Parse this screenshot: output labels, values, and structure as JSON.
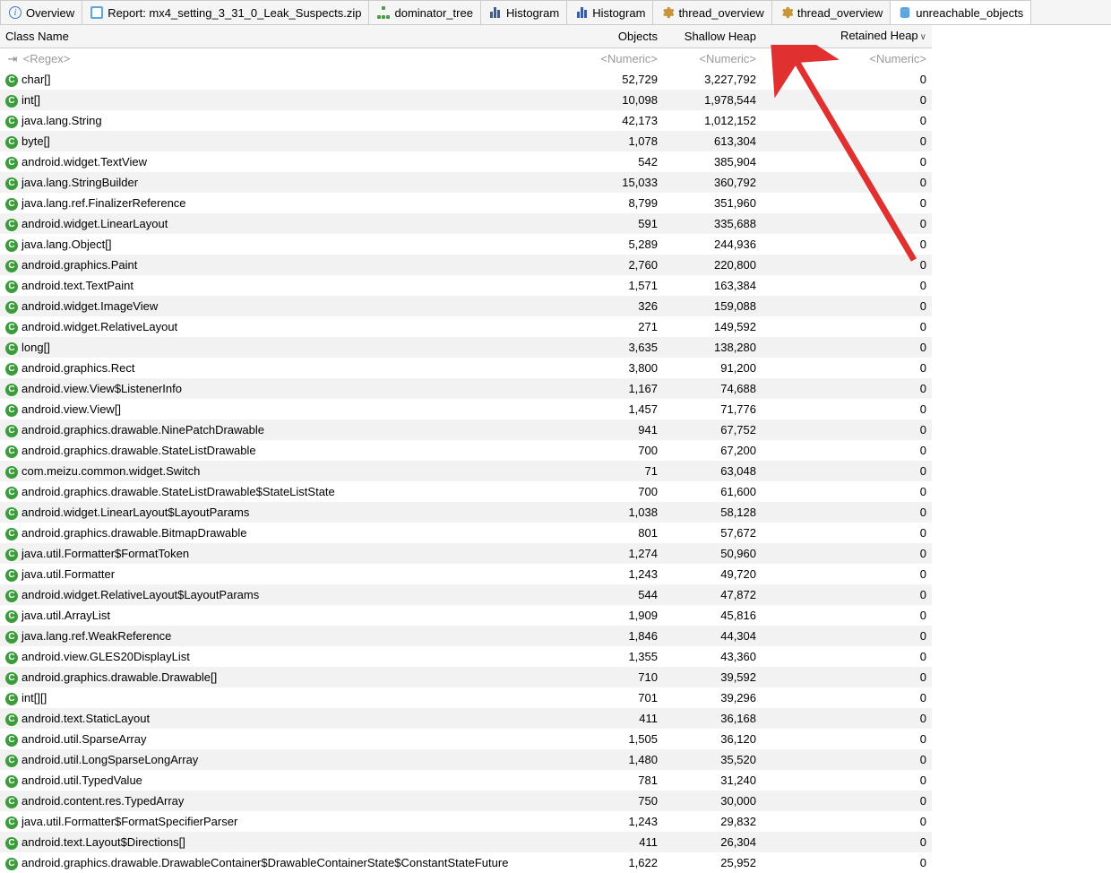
{
  "tabs": [
    {
      "label": "Overview",
      "icon": "info"
    },
    {
      "label": "Report: mx4_setting_3_31_0_Leak_Suspects.zip",
      "icon": "report"
    },
    {
      "label": "dominator_tree",
      "icon": "tree"
    },
    {
      "label": "Histogram",
      "icon": "hist"
    },
    {
      "label": "Histogram",
      "icon": "hist"
    },
    {
      "label": "thread_overview",
      "icon": "gear"
    },
    {
      "label": "thread_overview",
      "icon": "gear"
    },
    {
      "label": "unreachable_objects",
      "icon": "db",
      "active": true
    }
  ],
  "columns": {
    "name": "Class Name",
    "objects": "Objects",
    "shallow": "Shallow Heap",
    "retained": "Retained Heap"
  },
  "sort_indicator": "∨",
  "filter": {
    "regex": "<Regex>",
    "numeric": "<Numeric>"
  },
  "icon_letter": "C",
  "rows": [
    {
      "name": "char[]",
      "objects": "52,729",
      "shallow": "3,227,792",
      "retained": "0"
    },
    {
      "name": "int[]",
      "objects": "10,098",
      "shallow": "1,978,544",
      "retained": "0"
    },
    {
      "name": "java.lang.String",
      "objects": "42,173",
      "shallow": "1,012,152",
      "retained": "0"
    },
    {
      "name": "byte[]",
      "objects": "1,078",
      "shallow": "613,304",
      "retained": "0"
    },
    {
      "name": "android.widget.TextView",
      "objects": "542",
      "shallow": "385,904",
      "retained": "0"
    },
    {
      "name": "java.lang.StringBuilder",
      "objects": "15,033",
      "shallow": "360,792",
      "retained": "0"
    },
    {
      "name": "java.lang.ref.FinalizerReference",
      "objects": "8,799",
      "shallow": "351,960",
      "retained": "0"
    },
    {
      "name": "android.widget.LinearLayout",
      "objects": "591",
      "shallow": "335,688",
      "retained": "0"
    },
    {
      "name": "java.lang.Object[]",
      "objects": "5,289",
      "shallow": "244,936",
      "retained": "0"
    },
    {
      "name": "android.graphics.Paint",
      "objects": "2,760",
      "shallow": "220,800",
      "retained": "0"
    },
    {
      "name": "android.text.TextPaint",
      "objects": "1,571",
      "shallow": "163,384",
      "retained": "0"
    },
    {
      "name": "android.widget.ImageView",
      "objects": "326",
      "shallow": "159,088",
      "retained": "0"
    },
    {
      "name": "android.widget.RelativeLayout",
      "objects": "271",
      "shallow": "149,592",
      "retained": "0"
    },
    {
      "name": "long[]",
      "objects": "3,635",
      "shallow": "138,280",
      "retained": "0"
    },
    {
      "name": "android.graphics.Rect",
      "objects": "3,800",
      "shallow": "91,200",
      "retained": "0"
    },
    {
      "name": "android.view.View$ListenerInfo",
      "objects": "1,167",
      "shallow": "74,688",
      "retained": "0"
    },
    {
      "name": "android.view.View[]",
      "objects": "1,457",
      "shallow": "71,776",
      "retained": "0"
    },
    {
      "name": "android.graphics.drawable.NinePatchDrawable",
      "objects": "941",
      "shallow": "67,752",
      "retained": "0"
    },
    {
      "name": "android.graphics.drawable.StateListDrawable",
      "objects": "700",
      "shallow": "67,200",
      "retained": "0"
    },
    {
      "name": "com.meizu.common.widget.Switch",
      "objects": "71",
      "shallow": "63,048",
      "retained": "0"
    },
    {
      "name": "android.graphics.drawable.StateListDrawable$StateListState",
      "objects": "700",
      "shallow": "61,600",
      "retained": "0"
    },
    {
      "name": "android.widget.LinearLayout$LayoutParams",
      "objects": "1,038",
      "shallow": "58,128",
      "retained": "0"
    },
    {
      "name": "android.graphics.drawable.BitmapDrawable",
      "objects": "801",
      "shallow": "57,672",
      "retained": "0"
    },
    {
      "name": "java.util.Formatter$FormatToken",
      "objects": "1,274",
      "shallow": "50,960",
      "retained": "0"
    },
    {
      "name": "java.util.Formatter",
      "objects": "1,243",
      "shallow": "49,720",
      "retained": "0"
    },
    {
      "name": "android.widget.RelativeLayout$LayoutParams",
      "objects": "544",
      "shallow": "47,872",
      "retained": "0"
    },
    {
      "name": "java.util.ArrayList",
      "objects": "1,909",
      "shallow": "45,816",
      "retained": "0"
    },
    {
      "name": "java.lang.ref.WeakReference",
      "objects": "1,846",
      "shallow": "44,304",
      "retained": "0"
    },
    {
      "name": "android.view.GLES20DisplayList",
      "objects": "1,355",
      "shallow": "43,360",
      "retained": "0"
    },
    {
      "name": "android.graphics.drawable.Drawable[]",
      "objects": "710",
      "shallow": "39,592",
      "retained": "0"
    },
    {
      "name": "int[][]",
      "objects": "701",
      "shallow": "39,296",
      "retained": "0"
    },
    {
      "name": "android.text.StaticLayout",
      "objects": "411",
      "shallow": "36,168",
      "retained": "0"
    },
    {
      "name": "android.util.SparseArray",
      "objects": "1,505",
      "shallow": "36,120",
      "retained": "0"
    },
    {
      "name": "android.util.LongSparseLongArray",
      "objects": "1,480",
      "shallow": "35,520",
      "retained": "0"
    },
    {
      "name": "android.util.TypedValue",
      "objects": "781",
      "shallow": "31,240",
      "retained": "0"
    },
    {
      "name": "android.content.res.TypedArray",
      "objects": "750",
      "shallow": "30,000",
      "retained": "0"
    },
    {
      "name": "java.util.Formatter$FormatSpecifierParser",
      "objects": "1,243",
      "shallow": "29,832",
      "retained": "0"
    },
    {
      "name": "android.text.Layout$Directions[]",
      "objects": "411",
      "shallow": "26,304",
      "retained": "0"
    },
    {
      "name": "android.graphics.drawable.DrawableContainer$DrawableContainerState$ConstantStateFuture",
      "objects": "1,622",
      "shallow": "25,952",
      "retained": "0"
    }
  ],
  "colors": {
    "row_icon_bg": "#3a9c3a",
    "tab_bg": "#f5f5f5",
    "stripe_bg": "#f2f2f2",
    "arrow_color": "#e03030"
  }
}
